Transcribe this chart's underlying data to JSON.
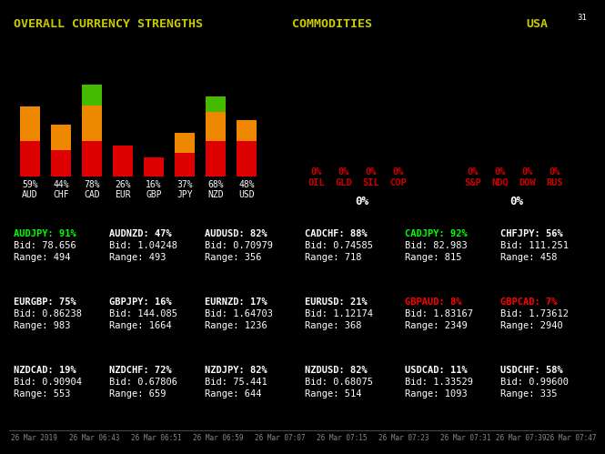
{
  "background_color": "#000000",
  "title_left": "OVERALL CURRENCY STRENGTHS",
  "title_mid": "COMMODITIES",
  "title_right": "USA",
  "title_color": "#cccc00",
  "corner_text": "31",
  "bars": {
    "currencies": [
      "AUD",
      "CHF",
      "CAD",
      "EUR",
      "GBP",
      "JPY",
      "NZD",
      "USD"
    ],
    "values": [
      59,
      44,
      78,
      26,
      16,
      37,
      68,
      48
    ],
    "segments": [
      {
        "red": 30,
        "yellow": 29,
        "green": 0
      },
      {
        "red": 22,
        "yellow": 22,
        "green": 0
      },
      {
        "red": 30,
        "yellow": 30,
        "green": 18
      },
      {
        "red": 26,
        "yellow": 0,
        "green": 0
      },
      {
        "red": 16,
        "yellow": 0,
        "green": 0
      },
      {
        "red": 20,
        "yellow": 17,
        "green": 0
      },
      {
        "red": 30,
        "yellow": 25,
        "green": 13
      },
      {
        "red": 30,
        "yellow": 18,
        "green": 0
      }
    ]
  },
  "commodities": {
    "labels": [
      "OIL",
      "GLD",
      "SIL",
      "COP"
    ],
    "values": [
      "0%",
      "0%",
      "0%",
      "0%"
    ],
    "center_value": "0%"
  },
  "usa": {
    "labels": [
      "S&P",
      "NDQ",
      "DOW",
      "RUS"
    ],
    "values": [
      "0%",
      "0%",
      "0%",
      "0%"
    ],
    "center_value": "0%"
  },
  "pairs_row1": [
    {
      "label": "AUDJPY: 91%",
      "bid": "Bid: 78.656",
      "range": "Range: 494",
      "color": "#00ff00"
    },
    {
      "label": "AUDNZD: 47%",
      "bid": "Bid: 1.04248",
      "range": "Range: 493",
      "color": "#ffffff"
    },
    {
      "label": "AUDUSD: 82%",
      "bid": "Bid: 0.70979",
      "range": "Range: 356",
      "color": "#ffffff"
    },
    {
      "label": "CADCHF: 88%",
      "bid": "Bid: 0.74585",
      "range": "Range: 718",
      "color": "#ffffff"
    },
    {
      "label": "CADJPY: 92%",
      "bid": "Bid: 82.983",
      "range": "Range: 815",
      "color": "#00ff00"
    },
    {
      "label": "CHFJPY: 56%",
      "bid": "Bid: 111.251",
      "range": "Range: 458",
      "color": "#ffffff"
    }
  ],
  "pairs_row2": [
    {
      "label": "EURGBP: 75%",
      "bid": "Bid: 0.86238",
      "range": "Range: 983",
      "color": "#ffffff"
    },
    {
      "label": "GBPJPY: 16%",
      "bid": "Bid: 144.085",
      "range": "Range: 1664",
      "color": "#ffffff"
    },
    {
      "label": "EURNZD: 17%",
      "bid": "Bid: 1.64703",
      "range": "Range: 1236",
      "color": "#ffffff"
    },
    {
      "label": "EURUSD: 21%",
      "bid": "Bid: 1.12174",
      "range": "Range: 368",
      "color": "#ffffff"
    },
    {
      "label": "GBPAUD: 8%",
      "bid": "Bid: 1.83167",
      "range": "Range: 2349",
      "color": "#ff0000"
    },
    {
      "label": "GBPCAD: 7%",
      "bid": "Bid: 1.73612",
      "range": "Range: 2940",
      "color": "#ff0000"
    }
  ],
  "pairs_row3": [
    {
      "label": "NZDCAD: 19%",
      "bid": "Bid: 0.90904",
      "range": "Range: 553",
      "color": "#ffffff"
    },
    {
      "label": "NZDCHF: 72%",
      "bid": "Bid: 0.67806",
      "range": "Range: 659",
      "color": "#ffffff"
    },
    {
      "label": "NZDJPY: 82%",
      "bid": "Bid: 75.441",
      "range": "Range: 644",
      "color": "#ffffff"
    },
    {
      "label": "NZDUSD: 82%",
      "bid": "Bid: 0.68075",
      "range": "Range: 514",
      "color": "#ffffff"
    },
    {
      "label": "USDCAD: 11%",
      "bid": "Bid: 1.33529",
      "range": "Range: 1093",
      "color": "#ffffff"
    },
    {
      "label": "USDCHF: 58%",
      "bid": "Bid: 0.99600",
      "range": "Range: 335",
      "color": "#ffffff"
    }
  ],
  "bottom_timestamps": [
    "26 Mar 2019",
    "26 Mar 06:43",
    "26 Mar 06:51",
    "26 Mar 06:59",
    "26 Mar 07:07",
    "26 Mar 07:15",
    "26 Mar 07:23",
    "26 Mar 07:31",
    "26 Mar 07:39",
    "26 Mar 07:47"
  ],
  "white_color": "#ffffff",
  "commodity_label_color": "#cc0000",
  "gray_color": "#888888"
}
